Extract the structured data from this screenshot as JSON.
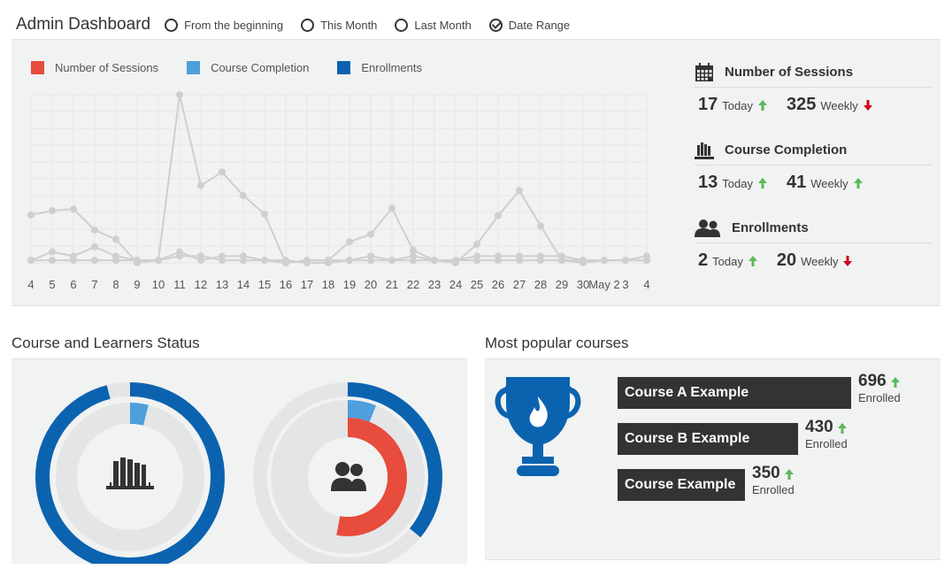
{
  "header": {
    "title": "Admin Dashboard",
    "filters": [
      {
        "label": "From the beginning",
        "checked": false
      },
      {
        "label": "This Month",
        "checked": false
      },
      {
        "label": "Last Month",
        "checked": false
      },
      {
        "label": "Date Range",
        "checked": true
      }
    ]
  },
  "colors": {
    "sessions": "#e74c3c",
    "completion": "#4f9fdc",
    "enrollments": "#0b63b0",
    "line": "#cfcfcf",
    "up": "#5cb85c",
    "down": "#d0021b",
    "dark": "#333333"
  },
  "chart_data": {
    "type": "line",
    "x": [
      "4",
      "5",
      "6",
      "7",
      "8",
      "9",
      "10",
      "11",
      "12",
      "13",
      "14",
      "15",
      "16",
      "17",
      "18",
      "19",
      "20",
      "21",
      "22",
      "23",
      "24",
      "25",
      "26",
      "27",
      "28",
      "29",
      "30",
      "May 2",
      "3",
      "4"
    ],
    "legend": [
      "Number of Sessions",
      "Course Completion",
      "Enrollments"
    ],
    "ylim": [
      0,
      200
    ],
    "grid": true,
    "series": [
      {
        "name": "Number of Sessions",
        "values": [
          57,
          62,
          64,
          39,
          28,
          0,
          3,
          200,
          92,
          108,
          80,
          58,
          0,
          3,
          3,
          25,
          34,
          65,
          15,
          3,
          0,
          22,
          56,
          86,
          44,
          3,
          0,
          3,
          3,
          8
        ]
      },
      {
        "name": "Course Completion",
        "values": [
          3,
          13,
          8,
          19,
          8,
          3,
          3,
          13,
          3,
          8,
          8,
          3,
          0,
          3,
          3,
          3,
          8,
          3,
          8,
          3,
          3,
          8,
          8,
          8,
          8,
          8,
          3,
          3,
          3,
          3
        ]
      },
      {
        "name": "Enrollments",
        "values": [
          3,
          3,
          3,
          3,
          3,
          3,
          3,
          8,
          8,
          3,
          3,
          3,
          3,
          0,
          0,
          3,
          3,
          3,
          3,
          3,
          3,
          3,
          3,
          3,
          3,
          3,
          3,
          3,
          3,
          3
        ]
      }
    ]
  },
  "stats": [
    {
      "title": "Number of Sessions",
      "icon": "calendar-icon",
      "today": "17",
      "today_label": "Today",
      "today_trend": "up",
      "weekly": "325",
      "weekly_label": "Weekly",
      "weekly_trend": "down"
    },
    {
      "title": "Course Completion",
      "icon": "books-icon",
      "today": "13",
      "today_label": "Today",
      "today_trend": "up",
      "weekly": "41",
      "weekly_label": "Weekly",
      "weekly_trend": "up"
    },
    {
      "title": "Enrollments",
      "icon": "users-icon",
      "today": "2",
      "today_label": "Today",
      "today_trend": "up",
      "weekly": "20",
      "weekly_label": "Weekly",
      "weekly_trend": "down"
    }
  ],
  "status_section": {
    "title": "Course and Learners Status",
    "donut_courses": {
      "icon": "books-icon",
      "rings": [
        {
          "color": "enrollments",
          "fraction": 0.96
        },
        {
          "color": "completion",
          "fraction": 0.04
        }
      ]
    },
    "donut_learners": {
      "icon": "users-icon",
      "rings": [
        {
          "color": "enrollments",
          "fraction": 0.36
        },
        {
          "color": "completion",
          "fraction": 0.06
        },
        {
          "color": "sessions",
          "fraction": 0.53
        }
      ]
    }
  },
  "popular_section": {
    "title": "Most popular courses",
    "courses": [
      {
        "name": "Course A Example",
        "count": "696",
        "sub": "Enrolled",
        "trend": "up"
      },
      {
        "name": "Course B Example",
        "count": "430",
        "sub": "Enrolled",
        "trend": "up"
      },
      {
        "name": "Course Example",
        "count": "350",
        "sub": "Enrolled",
        "trend": "up"
      }
    ]
  }
}
